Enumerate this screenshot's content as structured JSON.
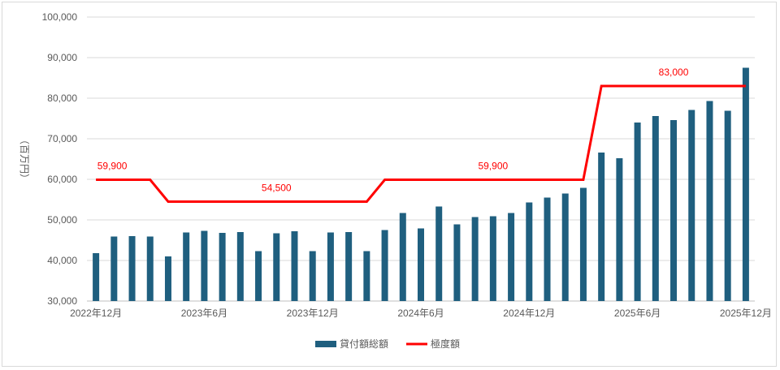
{
  "chart_data": {
    "type": "bar",
    "ylabel": "（百万円）",
    "ylim": [
      30000,
      100000
    ],
    "y_ticks": [
      "30,000",
      "40,000",
      "50,000",
      "60,000",
      "70,000",
      "80,000",
      "90,000",
      "100,000"
    ],
    "x_tick_labels": [
      "2022年12月",
      "2023年6月",
      "2023年12月",
      "2024年6月",
      "2024年12月",
      "2025年6月",
      "2025年12月"
    ],
    "categories": [
      "2022-12",
      "2023-01",
      "2023-02",
      "2023-03",
      "2023-04",
      "2023-05",
      "2023-06",
      "2023-07",
      "2023-08",
      "2023-09",
      "2023-10",
      "2023-11",
      "2023-12",
      "2024-01",
      "2024-02",
      "2024-03",
      "2024-04",
      "2024-05",
      "2024-06",
      "2024-07",
      "2024-08",
      "2024-09",
      "2024-10",
      "2024-11",
      "2024-12",
      "2025-01",
      "2025-02",
      "2025-03",
      "2025-04",
      "2025-05",
      "2025-06",
      "2025-07",
      "2025-08",
      "2025-09",
      "2025-10",
      "2025-11",
      "2025-12"
    ],
    "series": [
      {
        "name": "貸付額総額",
        "type": "bar",
        "color": "#1f5f7f",
        "values": [
          41800,
          45900,
          46000,
          45900,
          41000,
          46900,
          47300,
          46800,
          47000,
          42300,
          46700,
          47200,
          42300,
          46900,
          47000,
          42300,
          47500,
          51700,
          47900,
          53300,
          48900,
          50700,
          50900,
          51700,
          54300,
          55500,
          56500,
          57900,
          66600,
          65200,
          74000,
          75600,
          74600,
          77100,
          79300,
          76900,
          87500
        ]
      },
      {
        "name": "極度額",
        "type": "line",
        "color": "#ff0000",
        "values": [
          59900,
          59900,
          59900,
          59900,
          54500,
          54500,
          54500,
          54500,
          54500,
          54500,
          54500,
          54500,
          54500,
          54500,
          54500,
          54500,
          59900,
          59900,
          59900,
          59900,
          59900,
          59900,
          59900,
          59900,
          59900,
          59900,
          59900,
          59900,
          83000,
          83000,
          83000,
          83000,
          83000,
          83000,
          83000,
          83000,
          83000
        ]
      }
    ],
    "annotations": [
      "59,900",
      "54,500",
      "59,900",
      "83,000"
    ],
    "grid": true,
    "legend": "bottom"
  }
}
